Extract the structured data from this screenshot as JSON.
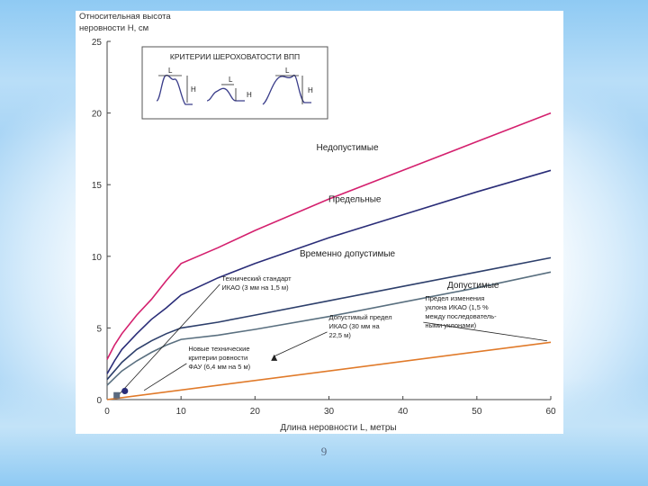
{
  "page_number": "9",
  "chart_data": {
    "type": "line",
    "title": "",
    "ylabel": "Относительная высота\nнеровности H, см",
    "xlabel": "Длина неровности L, метры",
    "xlim": [
      0,
      60
    ],
    "ylim": [
      0,
      25
    ],
    "x_ticks": [
      0,
      10,
      20,
      30,
      40,
      50,
      60
    ],
    "y_ticks": [
      0,
      5,
      10,
      15,
      20,
      25
    ],
    "grid": false,
    "series": [
      {
        "name": "Недопустимые",
        "color": "#d4206e",
        "x": [
          0,
          1,
          2,
          4,
          6,
          8,
          10,
          15,
          20,
          30,
          40,
          50,
          60
        ],
        "y": [
          2.8,
          3.8,
          4.6,
          5.9,
          7.0,
          8.3,
          9.5,
          10.6,
          11.8,
          14.0,
          16.0,
          18.0,
          20.0
        ]
      },
      {
        "name": "Предельные",
        "color": "#2a2d78",
        "x": [
          0,
          1,
          2,
          4,
          6,
          8,
          10,
          15,
          20,
          30,
          40,
          50,
          60
        ],
        "y": [
          1.8,
          2.7,
          3.5,
          4.6,
          5.6,
          6.4,
          7.3,
          8.5,
          9.5,
          11.3,
          12.9,
          14.5,
          16.0
        ]
      },
      {
        "name": "Временно допустимые",
        "color": "#2d3f6b",
        "x": [
          0,
          1,
          2,
          4,
          6,
          8,
          10,
          15,
          20,
          30,
          40,
          50,
          60
        ],
        "y": [
          1.4,
          2.0,
          2.6,
          3.5,
          4.1,
          4.6,
          5.0,
          5.4,
          5.9,
          6.9,
          7.9,
          8.9,
          9.9
        ]
      },
      {
        "name": "Допустимые",
        "color": "#5a7080",
        "x": [
          0,
          1,
          2,
          4,
          6,
          8,
          10,
          15,
          20,
          30,
          40,
          50,
          60
        ],
        "y": [
          1.0,
          1.5,
          2.0,
          2.7,
          3.3,
          3.8,
          4.2,
          4.5,
          4.9,
          5.8,
          6.8,
          7.8,
          8.9
        ]
      },
      {
        "name": "",
        "color": "#e07a2a",
        "x": [
          0,
          60
        ],
        "y": [
          0,
          4.0
        ]
      }
    ],
    "line_labels": [
      {
        "text": "Недопустимые",
        "x": 32.5,
        "y": 17.4
      },
      {
        "text": "Предельные",
        "x": 33.5,
        "y": 13.8
      },
      {
        "text": "Временно допустимые",
        "x": 32.5,
        "y": 10.0
      },
      {
        "text": "Допустимые",
        "x": 49.5,
        "y": 7.8
      }
    ],
    "annotations": [
      {
        "lines": [
          "Технический стандарт",
          "ИКАО (3 мм на 1,5 м)"
        ],
        "x": 15.5,
        "y": 8.3,
        "target_x": 1.5,
        "target_y": 0.3
      },
      {
        "lines": [
          "Допустимый предел",
          "ИКАО (30 мм на",
          "22,5 м)"
        ],
        "x": 30.0,
        "y": 5.6,
        "target_x": 22.5,
        "target_y": 3.0
      },
      {
        "lines": [
          "Новые технические",
          "критерии ровности",
          "ФАУ (6,4 мм на 5 м)"
        ],
        "x": 11.0,
        "y": 3.4,
        "target_x": 5.0,
        "target_y": 0.64
      },
      {
        "lines": [
          "Предел изменения",
          "уклона ИКАО (1,5 %",
          "между последователь-",
          "ными уклонами)"
        ],
        "x": 43.0,
        "y": 6.9,
        "target_x": 59.5,
        "target_y": 4.1
      }
    ],
    "markers": [
      {
        "shape": "circle",
        "x": 2.4,
        "y": 0.6,
        "color": "#2a2d78"
      },
      {
        "shape": "square",
        "x": 1.3,
        "y": 0.3,
        "color": "#5a6a80"
      },
      {
        "shape": "triangle",
        "x": 22.6,
        "y": 2.9,
        "color": "#222222"
      }
    ],
    "inset": {
      "title": "КРИТЕРИИ ШЕРОХОВАТОСТИ ВПП",
      "label_L": "L",
      "label_H": "H"
    }
  }
}
